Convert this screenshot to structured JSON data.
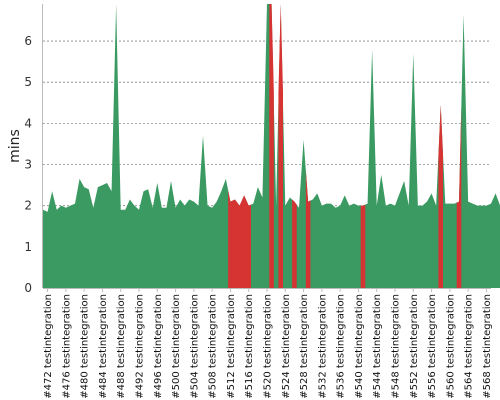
{
  "chart_data": {
    "type": "area",
    "title": "",
    "xlabel": "",
    "ylabel": "mins",
    "ylim": [
      0,
      6.9
    ],
    "yticks": [
      0,
      1,
      2,
      3,
      4,
      5,
      6
    ],
    "grid": true,
    "legend": "none",
    "colors": {
      "pass": "#3a9a62",
      "fail": "#d63333",
      "grid": "#888888",
      "axis": "#bbbbbb"
    },
    "x_start_build": 471,
    "x_end_build": 569,
    "x_tick_labels": [
      "#472 testintegration",
      "#476 testintegration",
      "#480 testintegration",
      "#484 testintegration",
      "#488 testintegration",
      "#492 testintegration",
      "#496 testintegration",
      "#500 testintegration",
      "#504 testintegration",
      "#508 testintegration",
      "#512 testintegration",
      "#516 testintegration",
      "#520 testintegration",
      "#524 testintegration",
      "#528 testintegration",
      "#532 testintegration",
      "#536 testintegration",
      "#540 testintegration",
      "#544 testintegration",
      "#548 testintegration",
      "#552 testintegration",
      "#556 testintegration",
      "#560 testintegration",
      "#564 testintegration",
      "#568 testintegration"
    ],
    "tick_builds": [
      472,
      476,
      480,
      484,
      488,
      492,
      496,
      500,
      504,
      508,
      512,
      516,
      520,
      524,
      528,
      532,
      536,
      540,
      544,
      548,
      552,
      556,
      560,
      564,
      568
    ],
    "values": [
      1.9,
      1.85,
      2.35,
      1.9,
      2.0,
      1.95,
      2.0,
      2.05,
      2.65,
      2.45,
      2.4,
      1.95,
      2.45,
      2.5,
      2.55,
      2.35,
      7.5,
      1.9,
      1.9,
      2.15,
      2.0,
      1.9,
      2.35,
      2.4,
      1.95,
      2.55,
      1.95,
      1.95,
      2.6,
      1.95,
      2.15,
      2.0,
      2.15,
      2.1,
      2.0,
      3.7,
      2.0,
      1.95,
      2.1,
      2.35,
      2.65,
      2.1,
      2.15,
      2.0,
      2.25,
      2.0,
      2.05,
      2.45,
      2.2,
      7.5,
      7.5,
      2.0,
      7.5,
      2.0,
      2.2,
      2.1,
      1.95,
      3.6,
      2.1,
      2.15,
      2.3,
      2.0,
      2.05,
      2.05,
      1.95,
      2.0,
      2.25,
      2.0,
      2.05,
      2.0,
      2.0,
      2.05,
      5.8,
      2.0,
      2.75,
      2.0,
      2.05,
      2.0,
      2.3,
      2.6,
      2.0,
      5.7,
      2.0,
      2.0,
      2.1,
      2.3,
      2.0,
      4.45,
      2.05,
      2.05,
      2.05,
      2.1,
      6.65,
      2.1,
      2.05,
      2.0,
      2.0,
      2.0,
      2.05,
      2.3,
      2.0,
      1.95
    ],
    "fail_builds": [
      512,
      513,
      514,
      515,
      516,
      521,
      523,
      526,
      529,
      541,
      558,
      562
    ]
  }
}
